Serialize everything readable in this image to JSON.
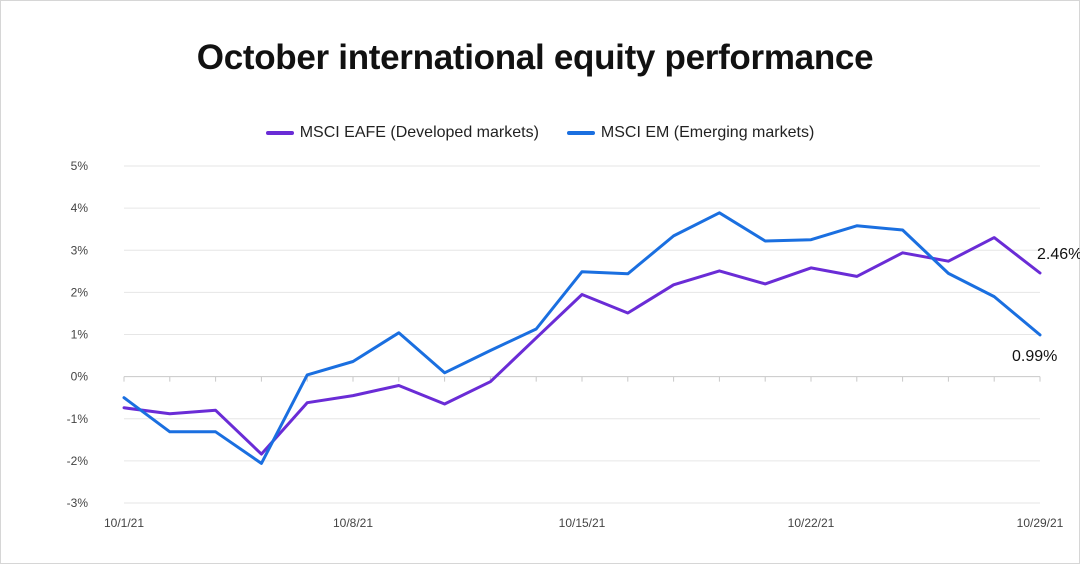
{
  "chart_data": {
    "type": "line",
    "title": "October international equity performance",
    "xlabel": "",
    "ylabel": "",
    "ylim": [
      -3,
      5
    ],
    "y_ticks": [
      "5%",
      "4%",
      "3%",
      "2%",
      "1%",
      "0%",
      "-1%",
      "-2%",
      "-3%"
    ],
    "x_tick_labels": [
      "10/1/21",
      "10/8/21",
      "10/15/21",
      "10/22/21",
      "10/29/21"
    ],
    "x": [
      "10/1/21",
      "10/4/21",
      "10/5/21",
      "10/6/21",
      "10/7/21",
      "10/8/21",
      "10/11/21",
      "10/12/21",
      "10/13/21",
      "10/14/21",
      "10/15/21",
      "10/18/21",
      "10/19/21",
      "10/20/21",
      "10/21/21",
      "10/22/21",
      "10/25/21",
      "10/26/21",
      "10/27/21",
      "10/28/21",
      "10/29/21"
    ],
    "grid": true,
    "legend_position": "top-center",
    "series": [
      {
        "name": "MSCI EAFE (Developed markets)",
        "color": "#6A2CD6",
        "values": [
          -0.74,
          -0.88,
          -0.8,
          -1.84,
          -0.62,
          -0.45,
          -0.21,
          -0.65,
          -0.12,
          0.92,
          1.95,
          1.51,
          2.18,
          2.51,
          2.2,
          2.58,
          2.38,
          2.94,
          2.74,
          3.3,
          2.46
        ],
        "end_label": "2.46%"
      },
      {
        "name": "MSCI EM (Emerging markets)",
        "color": "#1A6FE0",
        "values": [
          -0.5,
          -1.31,
          -1.31,
          -2.06,
          0.04,
          0.36,
          1.04,
          0.09,
          0.62,
          1.13,
          2.49,
          2.44,
          3.34,
          3.89,
          3.22,
          3.25,
          3.58,
          3.48,
          2.45,
          1.9,
          0.99
        ],
        "end_label": "0.99%"
      }
    ]
  }
}
